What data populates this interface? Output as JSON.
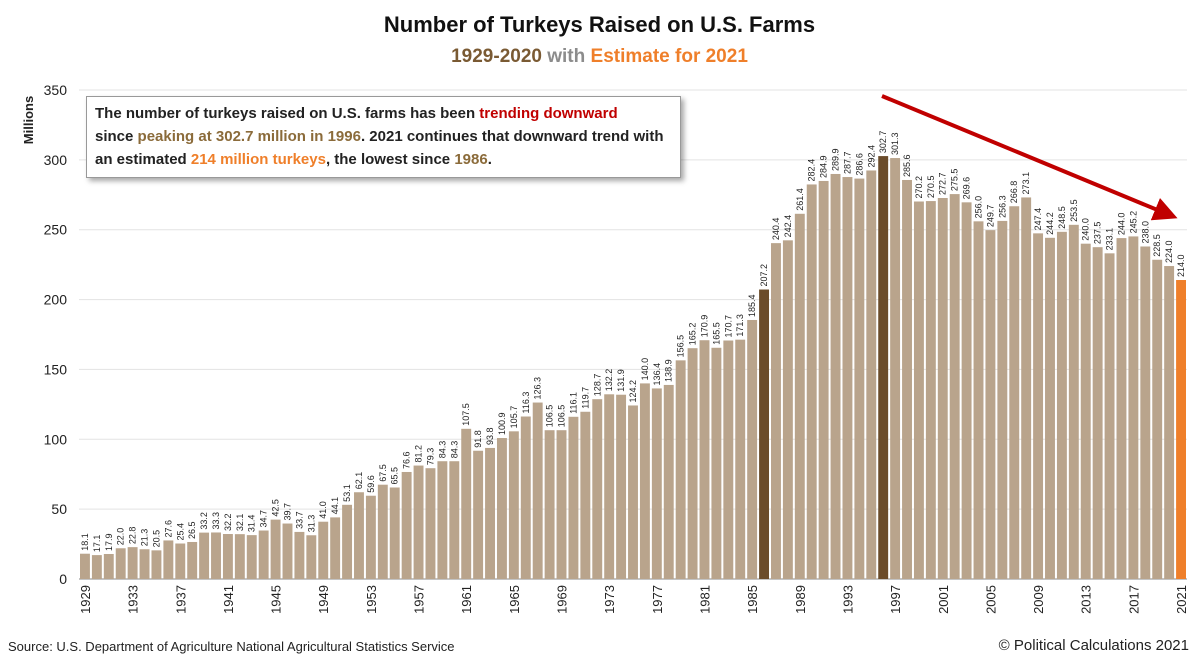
{
  "chart_data": {
    "type": "bar",
    "title": "Number of Turkeys Raised on U.S. Farms",
    "subtitle": {
      "years": "1929-2020",
      "with": "with",
      "estimate": "Estimate for 2021"
    },
    "ylabel": "Millions",
    "xlabel": "",
    "ylim": [
      0,
      350
    ],
    "yticks": [
      0,
      50,
      100,
      150,
      200,
      250,
      300,
      350
    ],
    "xtick_labels": [
      "1929",
      "1933",
      "1937",
      "1941",
      "1945",
      "1949",
      "1953",
      "1957",
      "1961",
      "1965",
      "1969",
      "1973",
      "1977",
      "1981",
      "1985",
      "1989",
      "1993",
      "1997",
      "2001",
      "2005",
      "2009",
      "2013",
      "2017",
      "2021"
    ],
    "grid": true,
    "colors": {
      "normal": "#b9a48c",
      "highlight": "#6b4c2a",
      "estimate": "#ef7f2a",
      "arrow": "#c00000"
    },
    "highlight_years": [
      1986,
      1996
    ],
    "estimate_years": [
      2021
    ],
    "categories": [
      1929,
      1930,
      1931,
      1932,
      1933,
      1934,
      1935,
      1936,
      1937,
      1938,
      1939,
      1940,
      1941,
      1942,
      1943,
      1944,
      1945,
      1946,
      1947,
      1948,
      1949,
      1950,
      1951,
      1952,
      1953,
      1954,
      1955,
      1956,
      1957,
      1958,
      1959,
      1960,
      1961,
      1962,
      1963,
      1964,
      1965,
      1966,
      1967,
      1968,
      1969,
      1970,
      1971,
      1972,
      1973,
      1974,
      1975,
      1976,
      1977,
      1978,
      1979,
      1980,
      1981,
      1982,
      1983,
      1984,
      1985,
      1986,
      1987,
      1988,
      1989,
      1990,
      1991,
      1992,
      1993,
      1994,
      1995,
      1996,
      1997,
      1998,
      1999,
      2000,
      2001,
      2002,
      2003,
      2004,
      2005,
      2006,
      2007,
      2008,
      2009,
      2010,
      2011,
      2012,
      2013,
      2014,
      2015,
      2016,
      2017,
      2018,
      2019,
      2020,
      2021
    ],
    "values": [
      18.1,
      17.1,
      17.9,
      22.0,
      22.8,
      21.3,
      20.5,
      27.6,
      25.4,
      26.5,
      33.2,
      33.3,
      32.2,
      32.1,
      31.4,
      34.7,
      42.5,
      39.7,
      33.7,
      31.3,
      41.0,
      44.1,
      53.1,
      62.1,
      59.6,
      67.5,
      65.5,
      76.6,
      81.2,
      79.3,
      84.3,
      84.3,
      107.5,
      91.8,
      93.8,
      100.9,
      105.7,
      116.3,
      126.3,
      106.5,
      106.5,
      116.1,
      119.7,
      128.7,
      132.2,
      131.9,
      124.2,
      140.0,
      136.4,
      138.9,
      156.5,
      165.2,
      170.9,
      165.5,
      170.7,
      171.3,
      185.4,
      207.2,
      240.4,
      242.4,
      261.4,
      282.4,
      284.9,
      289.9,
      287.7,
      286.6,
      292.4,
      302.7,
      301.3,
      285.6,
      270.2,
      270.5,
      272.7,
      275.5,
      269.6,
      256.0,
      249.7,
      256.3,
      266.8,
      273.1,
      247.4,
      244.2,
      248.5,
      253.5,
      240.0,
      237.5,
      233.1,
      244.0,
      245.2,
      238.0,
      228.5,
      224.0,
      214.0
    ],
    "value_labels": [
      "18.1",
      "17.1",
      "17.9",
      "22.0",
      "22.8",
      "21.3",
      "20.5",
      "27.6",
      "25.4",
      "26.5",
      "33.2",
      "33.3",
      "32.2",
      "32.1",
      "31.4",
      "34.7",
      "42.5",
      "39.7",
      "33.7",
      "31.3",
      "41.0",
      "44.1",
      "53.1",
      "62.1",
      "59.6",
      "67.5",
      "65.5",
      "76.6",
      "81.2",
      "79.3",
      "84.3",
      "84.3",
      "107.5",
      "91.8",
      "93.8",
      "100.9",
      "105.7",
      "116.3",
      "126.3",
      "106.5",
      "106.5",
      "116.1",
      "119.7",
      "128.7",
      "132.2",
      "131.9",
      "124.2",
      "140.0",
      "136.4",
      "138.9",
      "156.5",
      "165.2",
      "170.9",
      "165.5",
      "170.7",
      "171.3",
      "185.4",
      "207.2",
      "240.4",
      "242.4",
      "261.4",
      "282.4",
      "284.9",
      "289.9",
      "287.7",
      "286.6",
      "292.4",
      "302.7",
      "301.3",
      "285.6",
      "270.2",
      "270.5",
      "272.7",
      "275.5",
      "269.6",
      "256.0",
      "249.7",
      "256.3",
      "266.8",
      "273.1",
      "247.4",
      "244.2",
      "248.5",
      "253.5",
      "240.0",
      "237.5",
      "233.1",
      "244.0",
      "245.2",
      "238.0",
      "228.5",
      "224.0",
      "214.0"
    ]
  },
  "annotation": {
    "t1": "The number of turkeys raised on U.S. farms has been ",
    "t2": "trending downward",
    "t3": "since ",
    "t4": "peaking at 302.7 million in 1996",
    "t5": ".  2021 continues that downward trend with an estimated ",
    "t6": "214 million turkeys",
    "t7": ", the lowest since ",
    "t8": "1986",
    "t9": "."
  },
  "footer": {
    "source": "Source: U.S. Department of Agriculture National Agricultural Statistics Service",
    "copyright": "© Political Calculations 2021"
  }
}
